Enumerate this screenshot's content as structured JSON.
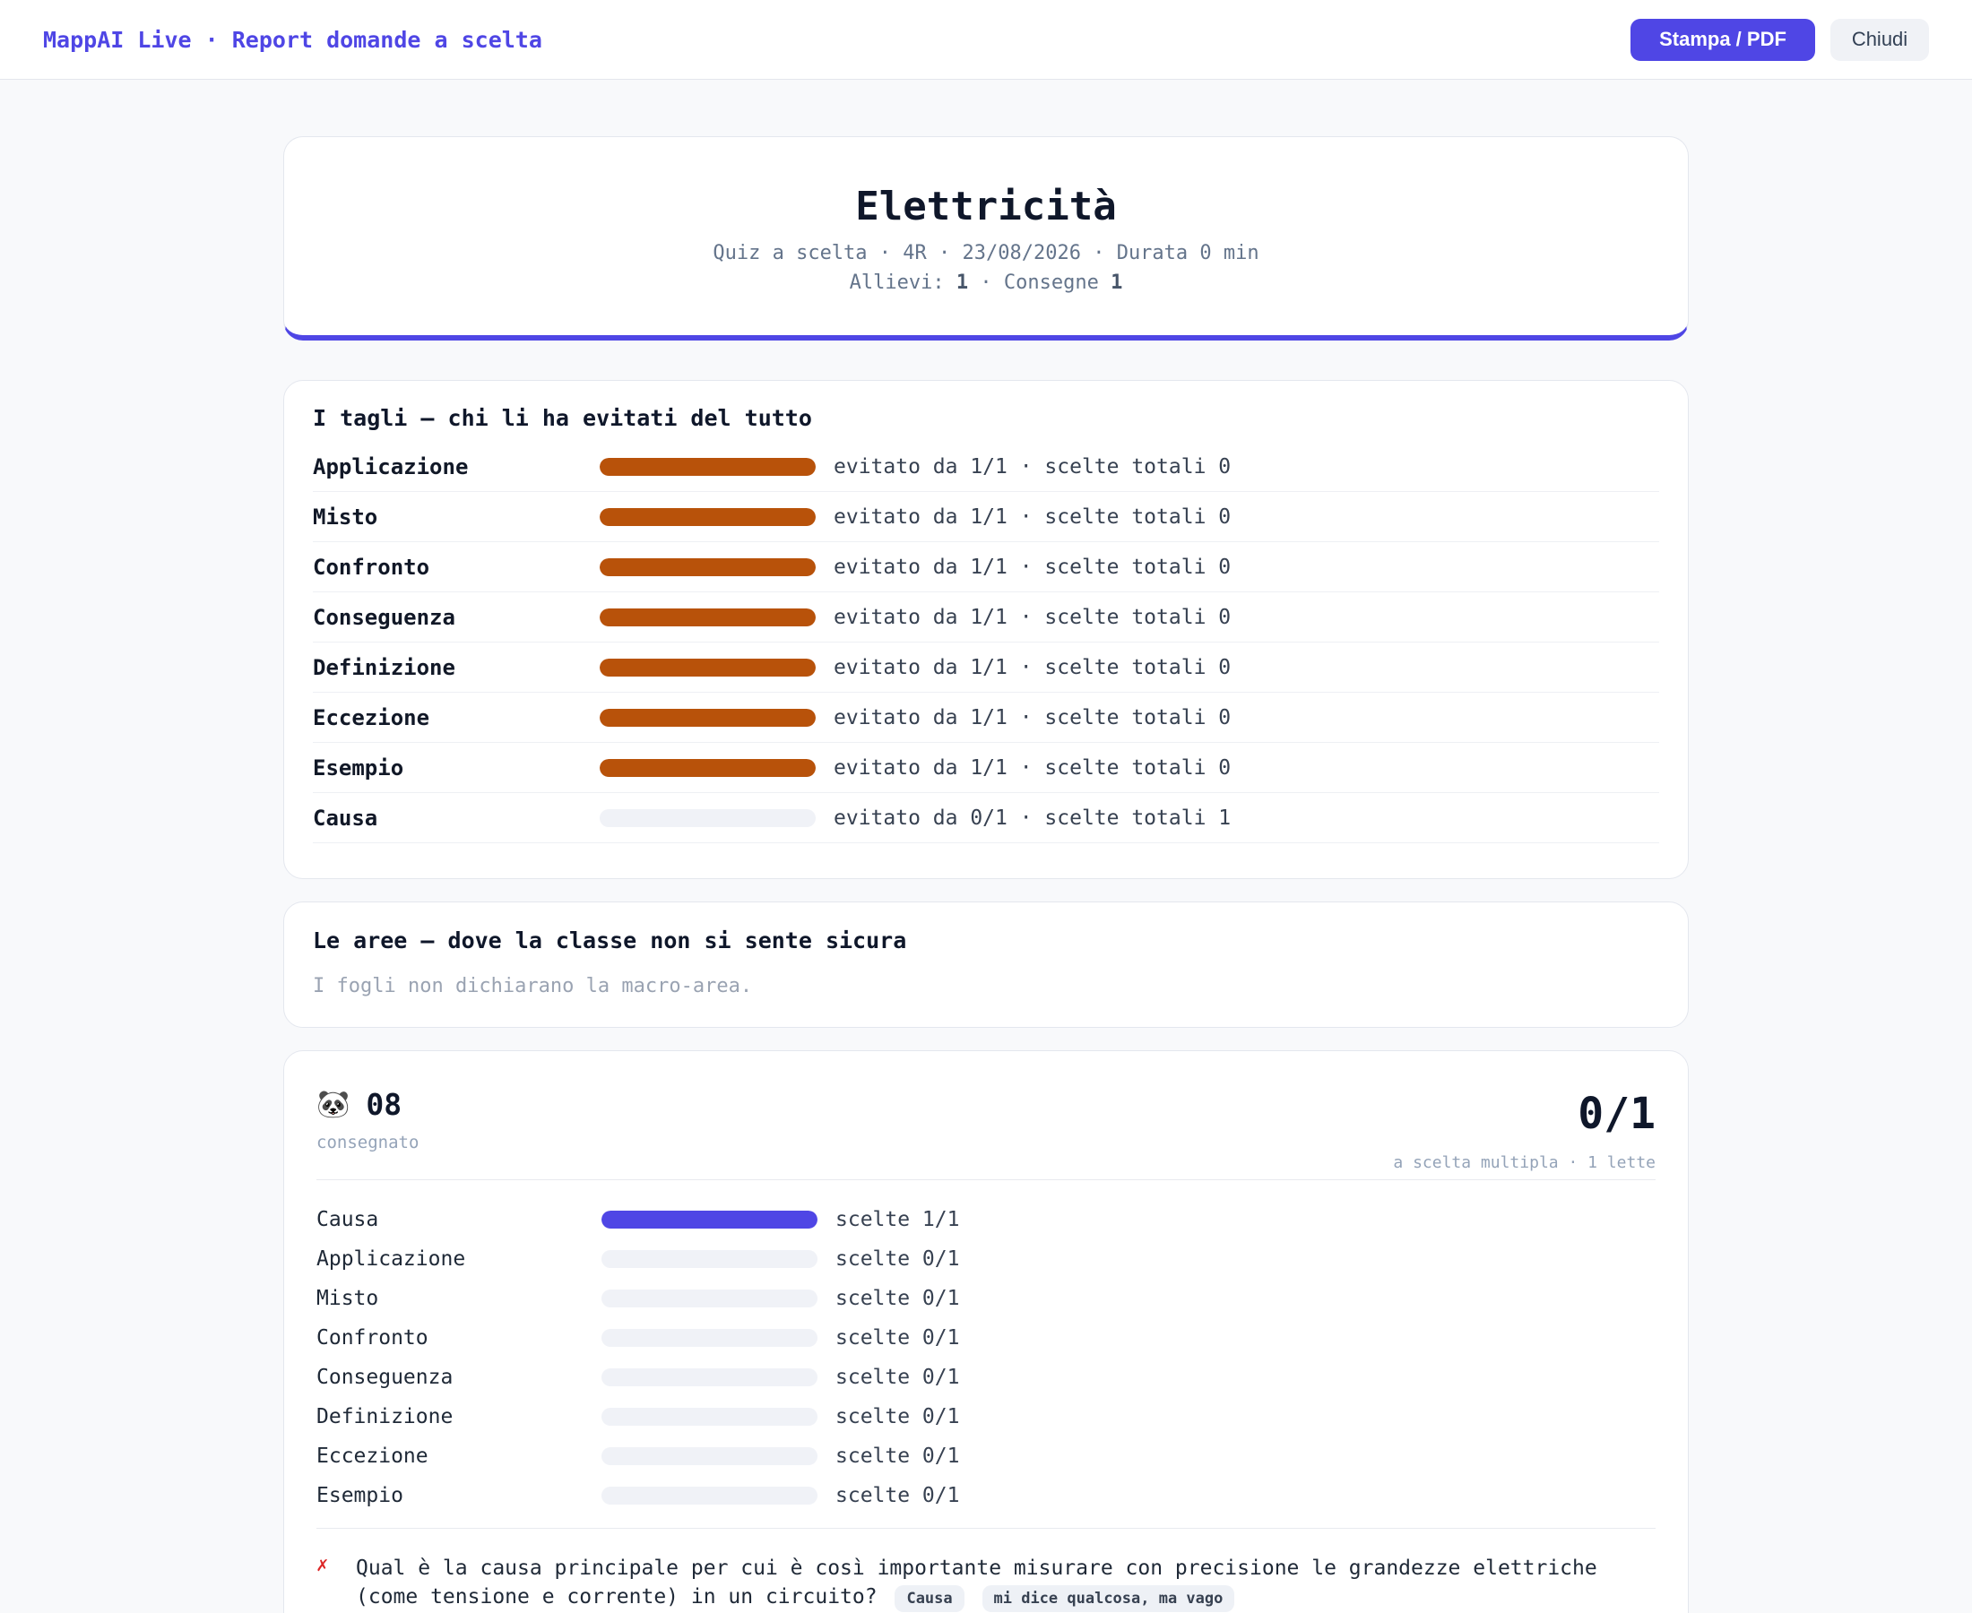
{
  "topbar": {
    "brand": "MappAI Live · Report domande a scelta",
    "print_label": "Stampa / PDF",
    "close_label": "Chiudi"
  },
  "header": {
    "title": "Elettricità",
    "meta_line": "Quiz a scelta · 4R · 23/08/2026 · Durata 0 min",
    "students_label": "Allievi:",
    "students_count": "1",
    "separator": "·",
    "submissions_label": "Consegne",
    "submissions_count": "1"
  },
  "cuts": {
    "title": "I tagli — chi li ha evitati del tutto",
    "rows": [
      {
        "label": "Applicazione",
        "text": "evitato da 1/1 · scelte totali 0",
        "fill_fraction": 1
      },
      {
        "label": "Misto",
        "text": "evitato da 1/1 · scelte totali 0",
        "fill_fraction": 1
      },
      {
        "label": "Confronto",
        "text": "evitato da 1/1 · scelte totali 0",
        "fill_fraction": 1
      },
      {
        "label": "Conseguenza",
        "text": "evitato da 1/1 · scelte totali 0",
        "fill_fraction": 1
      },
      {
        "label": "Definizione",
        "text": "evitato da 1/1 · scelte totali 0",
        "fill_fraction": 1
      },
      {
        "label": "Eccezione",
        "text": "evitato da 1/1 · scelte totali 0",
        "fill_fraction": 1
      },
      {
        "label": "Esempio",
        "text": "evitato da 1/1 · scelte totali 0",
        "fill_fraction": 1
      },
      {
        "label": "Causa",
        "text": "evitato da 0/1 · scelte totali 1",
        "fill_fraction": 0
      }
    ]
  },
  "areas": {
    "title": "Le aree — dove la classe non si sente sicura",
    "empty_text": "I fogli non dichiarano la macro-area."
  },
  "student": {
    "avatar": "🐼",
    "name": "08",
    "status": "consegnato",
    "score": "0/1",
    "score_sub": "a scelta multipla · 1 lette",
    "choices": [
      {
        "label": "Causa",
        "text": "scelte 1/1",
        "fill_fraction": 1
      },
      {
        "label": "Applicazione",
        "text": "scelte 0/1",
        "fill_fraction": 0
      },
      {
        "label": "Misto",
        "text": "scelte 0/1",
        "fill_fraction": 0
      },
      {
        "label": "Confronto",
        "text": "scelte 0/1",
        "fill_fraction": 0
      },
      {
        "label": "Conseguenza",
        "text": "scelte 0/1",
        "fill_fraction": 0
      },
      {
        "label": "Definizione",
        "text": "scelte 0/1",
        "fill_fraction": 0
      },
      {
        "label": "Eccezione",
        "text": "scelte 0/1",
        "fill_fraction": 0
      },
      {
        "label": "Esempio",
        "text": "scelte 0/1",
        "fill_fraction": 0
      }
    ],
    "question": {
      "mark": "✗",
      "text": "Qual è la causa principale per cui è così importante misurare con precisione le grandezze elettriche (come tensione e corrente) in un circuito?",
      "tags": [
        "Causa",
        "mi dice qualcosa, ma vago"
      ]
    }
  },
  "colors": {
    "accent": "#4f46e5",
    "avoided_bar": "#b8520a",
    "wrong_mark": "#dc2626"
  }
}
